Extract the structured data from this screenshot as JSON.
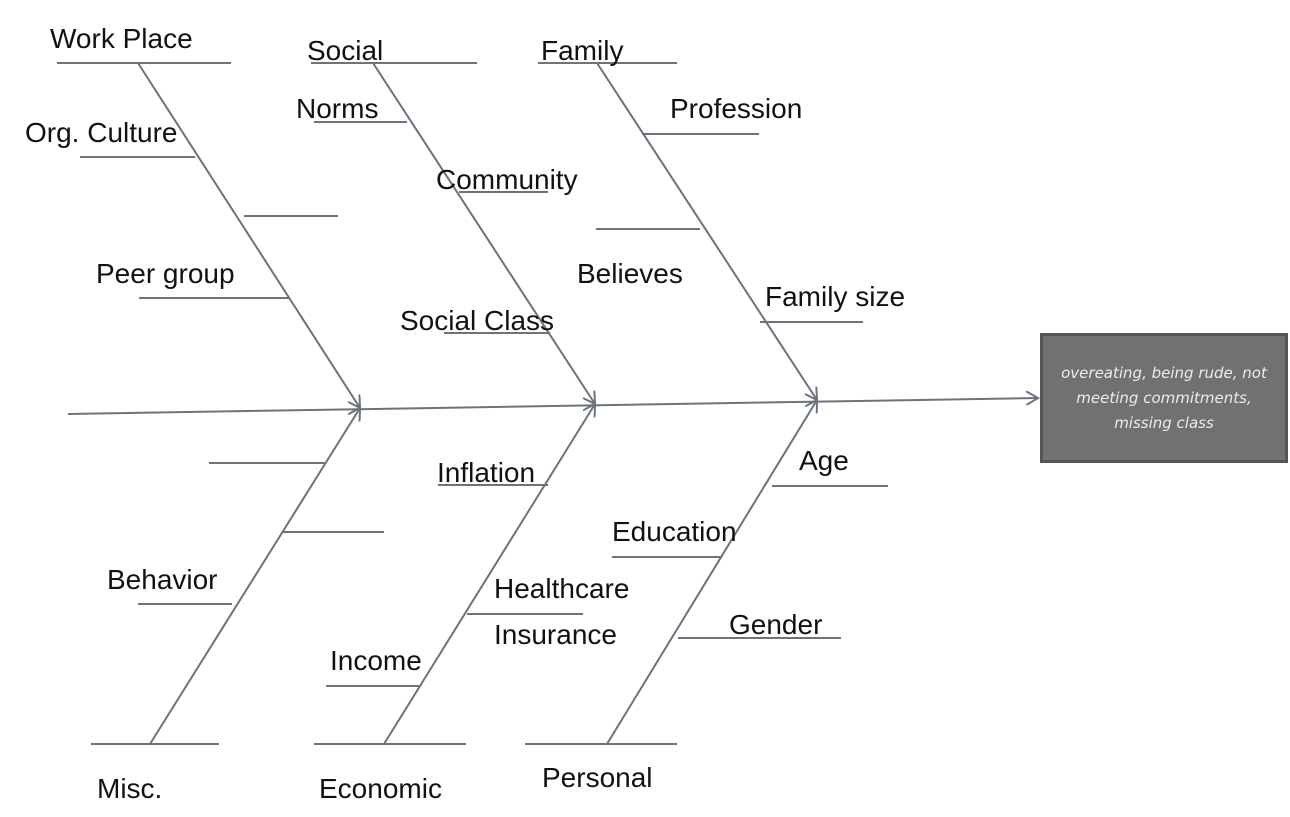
{
  "effect": "overeating, being rude, not meeting commitments, missing class",
  "line_color": "#6b737d",
  "box_color": "#717171",
  "categories_top": [
    {
      "name": "Work Place",
      "causes": [
        "Org. Culture",
        "",
        "Peer group"
      ]
    },
    {
      "name": "Social",
      "causes": [
        "Norms",
        "Community",
        "Social Class"
      ]
    },
    {
      "name": "Family",
      "causes": [
        "Profession",
        "Believes",
        "Family size"
      ]
    }
  ],
  "categories_bottom": [
    {
      "name": "Misc.",
      "causes": [
        "",
        "",
        "Behavior"
      ]
    },
    {
      "name": "Economic",
      "causes": [
        "Inflation",
        "Healthcare",
        "Insurance",
        "Income"
      ]
    },
    {
      "name": "Personal",
      "causes": [
        "Age",
        "Education",
        "Gender"
      ]
    }
  ]
}
